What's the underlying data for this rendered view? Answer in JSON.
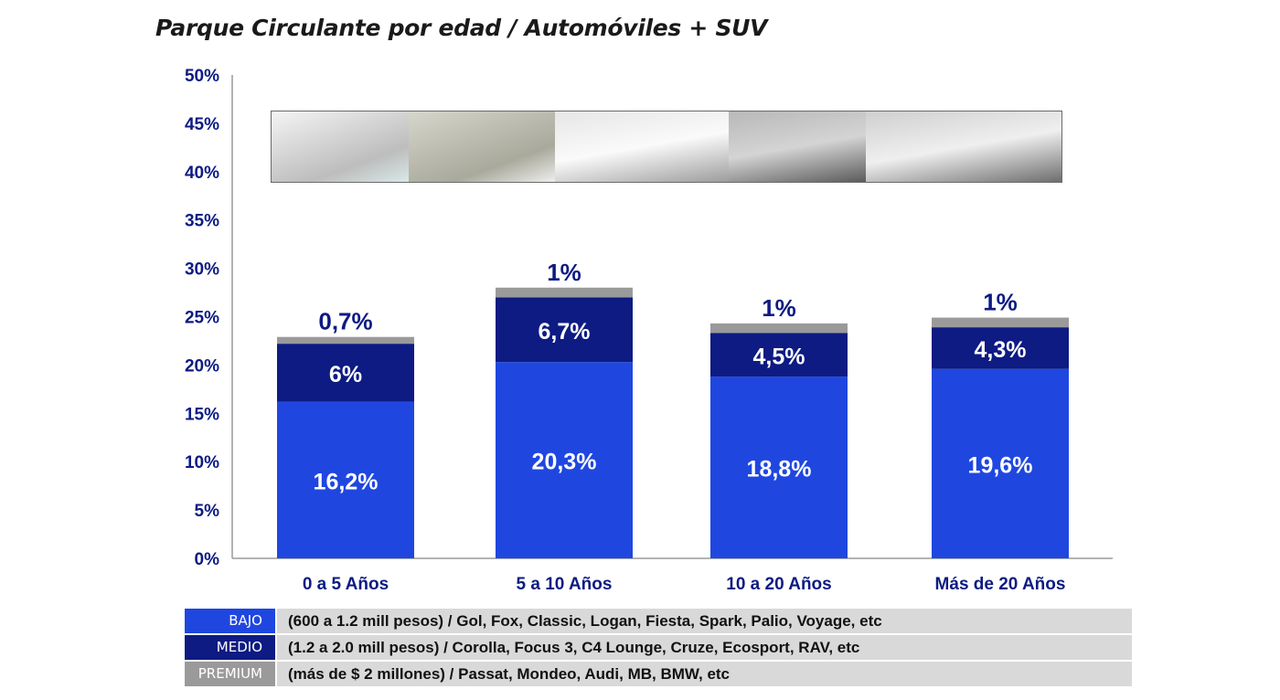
{
  "colors": {
    "bajo": "#1f47e0",
    "medio": "#0d1b82",
    "premium": "#9a9a9a",
    "axis_text": "#0d1b82"
  },
  "chart_data": {
    "type": "bar",
    "stacked": true,
    "title": "Parque Circulante por edad / Automóviles + SUV",
    "categories": [
      "0 a 5 Años",
      "5 a 10 Años",
      "10 a 20 Años",
      "Más de 20 Años"
    ],
    "series": [
      {
        "name": "BAJO",
        "values": [
          16.2,
          20.3,
          18.8,
          19.6
        ],
        "labels": [
          "16,2%",
          "20,3%",
          "18,8%",
          "19,6%"
        ]
      },
      {
        "name": "MEDIO",
        "values": [
          6,
          6.7,
          4.5,
          4.3
        ],
        "labels": [
          "6%",
          "6,7%",
          "4,5%",
          "4,3%"
        ]
      },
      {
        "name": "PREMIUM",
        "values": [
          0.7,
          1,
          1,
          1
        ],
        "labels": [
          "0,7%",
          "1%",
          "1%",
          "1%"
        ]
      }
    ],
    "yticks": [
      "0%",
      "5%",
      "10%",
      "15%",
      "20%",
      "25%",
      "30%",
      "35%",
      "40%",
      "45%",
      "50%"
    ],
    "ylim": [
      0,
      50
    ]
  },
  "legend": [
    {
      "key": "BAJO",
      "desc": "(600 a 1.2 mill pesos) / Gol, Fox, Classic, Logan, Fiesta, Spark, Palio, Voyage, etc"
    },
    {
      "key": "MEDIO",
      "desc": "(1.2 a 2.0 mill pesos)  / Corolla, Focus 3, C4 Lounge, Cruze, Ecosport, RAV, etc"
    },
    {
      "key": "PREMIUM",
      "desc": " (más de $ 2 millones)  / Passat, Mondeo, Audi, MB, BMW, etc"
    }
  ]
}
